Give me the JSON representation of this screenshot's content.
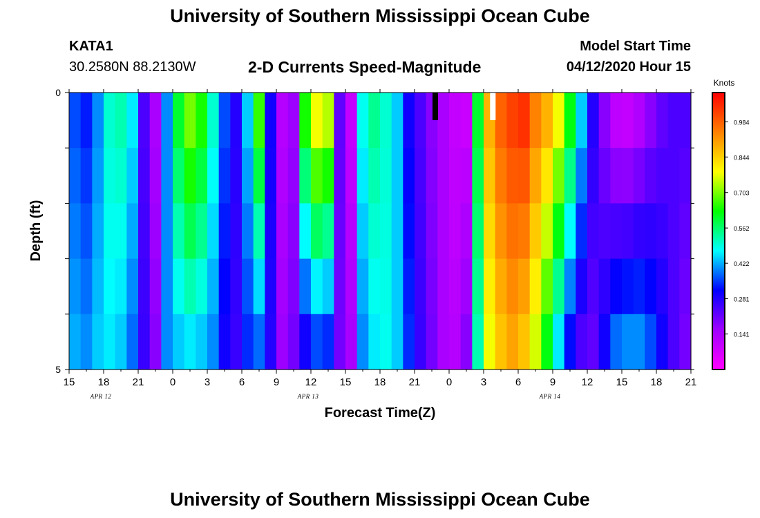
{
  "header": {
    "title": "University of Southern Mississippi Ocean Cube",
    "station_id": "KATA1",
    "station_coords": "30.2580N 88.2130W",
    "chart_title": "2-D Currents Speed-Magnitude",
    "model_start_label": "Model Start Time",
    "model_start_time": "04/12/2020 Hour 15"
  },
  "footer": {
    "title": "University of Southern Mississippi Ocean Cube"
  },
  "chart_data": {
    "type": "heatmap",
    "xlabel": "Forecast Time(Z)",
    "ylabel": "Depth (ft)",
    "colorbar_label": "Knots",
    "x_ticks": [
      "15",
      "18",
      "21",
      "0",
      "3",
      "6",
      "9",
      "12",
      "15",
      "18",
      "21",
      "0",
      "3",
      "6",
      "9",
      "12",
      "15",
      "18",
      "21"
    ],
    "date_labels": [
      {
        "label": "APR 12",
        "tick_index": 1
      },
      {
        "label": "APR 13",
        "tick_index": 7
      },
      {
        "label": "APR 14",
        "tick_index": 14
      }
    ],
    "y_tick_labels": [
      "0",
      "5"
    ],
    "ylim": [
      0,
      5
    ],
    "x_hours_range": [
      0,
      54
    ],
    "color_ticks": [
      0.141,
      0.281,
      0.422,
      0.562,
      0.703,
      0.844,
      0.984
    ],
    "color_range": [
      0.0,
      1.1
    ],
    "colors": [
      "#ff00ff",
      "#a000ff",
      "#0000ff",
      "#00ffff",
      "#00ff00",
      "#ffff00",
      "#ff8000",
      "#ff0000"
    ],
    "depth_levels": 5,
    "surface_speed_by_hour": [
      0.36,
      0.33,
      0.4,
      0.5,
      0.52,
      0.46,
      0.24,
      0.14,
      0.4,
      0.6,
      0.7,
      0.64,
      0.5,
      0.36,
      0.28,
      0.44,
      0.66,
      0.3,
      0.12,
      0.16,
      0.64,
      0.78,
      0.74,
      0.22,
      0.1,
      0.48,
      0.54,
      0.5,
      0.44,
      0.3,
      0.24,
      0.18,
      0.14,
      0.1,
      0.09,
      0.6,
      0.88,
      0.98,
      1.02,
      1.04,
      0.94,
      0.88,
      0.78,
      0.62,
      0.44,
      0.28,
      0.18,
      0.11,
      0.1,
      0.13,
      0.18,
      0.22,
      0.24,
      0.24
    ],
    "bottom_speed_by_hour": [
      0.42,
      0.4,
      0.44,
      0.46,
      0.44,
      0.38,
      0.26,
      0.18,
      0.4,
      0.44,
      0.46,
      0.44,
      0.4,
      0.3,
      0.26,
      0.34,
      0.38,
      0.28,
      0.16,
      0.2,
      0.3,
      0.36,
      0.34,
      0.2,
      0.14,
      0.4,
      0.46,
      0.48,
      0.44,
      0.34,
      0.26,
      0.2,
      0.14,
      0.12,
      0.18,
      0.52,
      0.78,
      0.86,
      0.9,
      0.86,
      0.76,
      0.62,
      0.46,
      0.32,
      0.24,
      0.22,
      0.3,
      0.38,
      0.4,
      0.4,
      0.36,
      0.3,
      0.24,
      0.2
    ],
    "surface_outliers": [
      {
        "hour": 31.8,
        "color": "#000000"
      },
      {
        "hour": 36.8,
        "color": "#ffffff"
      }
    ]
  }
}
